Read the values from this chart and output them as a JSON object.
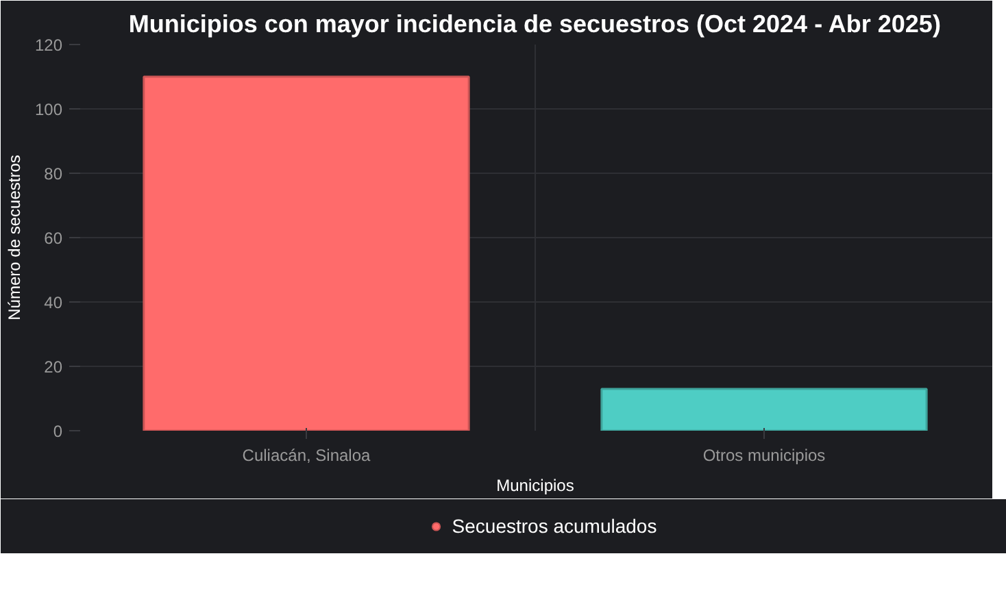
{
  "chart_data": {
    "type": "bar",
    "title": "Municipios con mayor incidencia de secuestros (Oct 2024 - Abr 2025)",
    "xlabel": "Municipios",
    "ylabel": "Número de secuestros",
    "categories": [
      "Culiacán, Sinaloa",
      "Otros municipios"
    ],
    "series": [
      {
        "name": "Secuestros acumulados",
        "colors": [
          "#ff6b6b",
          "#4ecdc4"
        ],
        "values": [
          110,
          13
        ]
      }
    ],
    "ylim": [
      0,
      120
    ],
    "yticks": [
      0,
      20,
      40,
      60,
      80,
      100,
      120
    ],
    "grid": true,
    "legend": "bottom"
  }
}
